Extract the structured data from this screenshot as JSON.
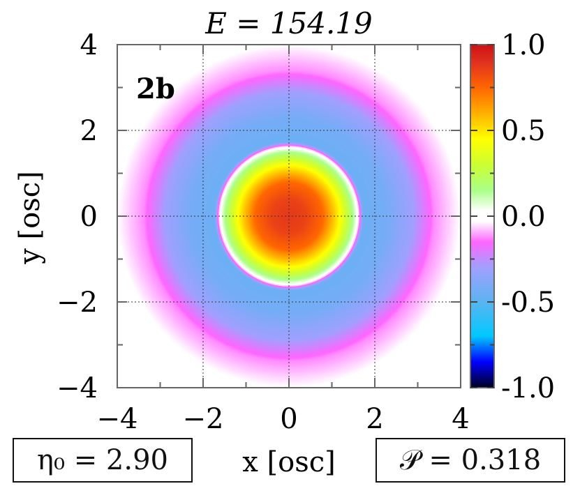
{
  "chart_data": {
    "type": "heatmap",
    "title": "E = 154.19",
    "panel_label": "2b",
    "xlabel": "x [osc]",
    "ylabel": "y [osc]",
    "xlim": [
      -4,
      4
    ],
    "ylim": [
      -4,
      4
    ],
    "x_ticks": [
      "−4",
      "−2",
      "0",
      "2",
      "4"
    ],
    "y_ticks": [
      "4",
      "2",
      "0",
      "−2",
      "−4"
    ],
    "grid": true,
    "colorbar": {
      "range": [
        -1.0,
        1.0
      ],
      "tick_labels": [
        "1.0",
        "0.5",
        "0.0",
        "-0.5",
        "-1.0"
      ],
      "tick_values": [
        1.0,
        0.5,
        0.0,
        -0.5,
        -1.0
      ]
    },
    "radial_profile": {
      "r": [
        0.0,
        0.4,
        0.8,
        1.2,
        1.5,
        1.62,
        1.75,
        2.3,
        2.9,
        3.4,
        4.0,
        4.5
      ],
      "value": [
        0.88,
        0.85,
        0.75,
        0.45,
        0.15,
        0.0,
        -0.45,
        -0.42,
        -0.3,
        -0.12,
        -0.03,
        0.0
      ]
    },
    "annotations": {
      "eta": "η₀ = 2.90",
      "purity": "𝒫 = 0.318"
    }
  },
  "colors": {
    "stops": [
      [
        -1.0,
        "#000020"
      ],
      [
        -0.85,
        "#0000ff"
      ],
      [
        -0.7,
        "#00c8ff"
      ],
      [
        -0.5,
        "#5ab4f0"
      ],
      [
        -0.3,
        "#a0a0ff"
      ],
      [
        -0.15,
        "#ff66ff"
      ],
      [
        -0.03,
        "#ffffff"
      ],
      [
        0.03,
        "#ffffff"
      ],
      [
        0.15,
        "#aaff88"
      ],
      [
        0.3,
        "#ccff33"
      ],
      [
        0.45,
        "#ffff00"
      ],
      [
        0.6,
        "#ffb000"
      ],
      [
        0.75,
        "#ff6600"
      ],
      [
        0.9,
        "#e03020"
      ],
      [
        1.0,
        "#cc1111"
      ]
    ]
  }
}
